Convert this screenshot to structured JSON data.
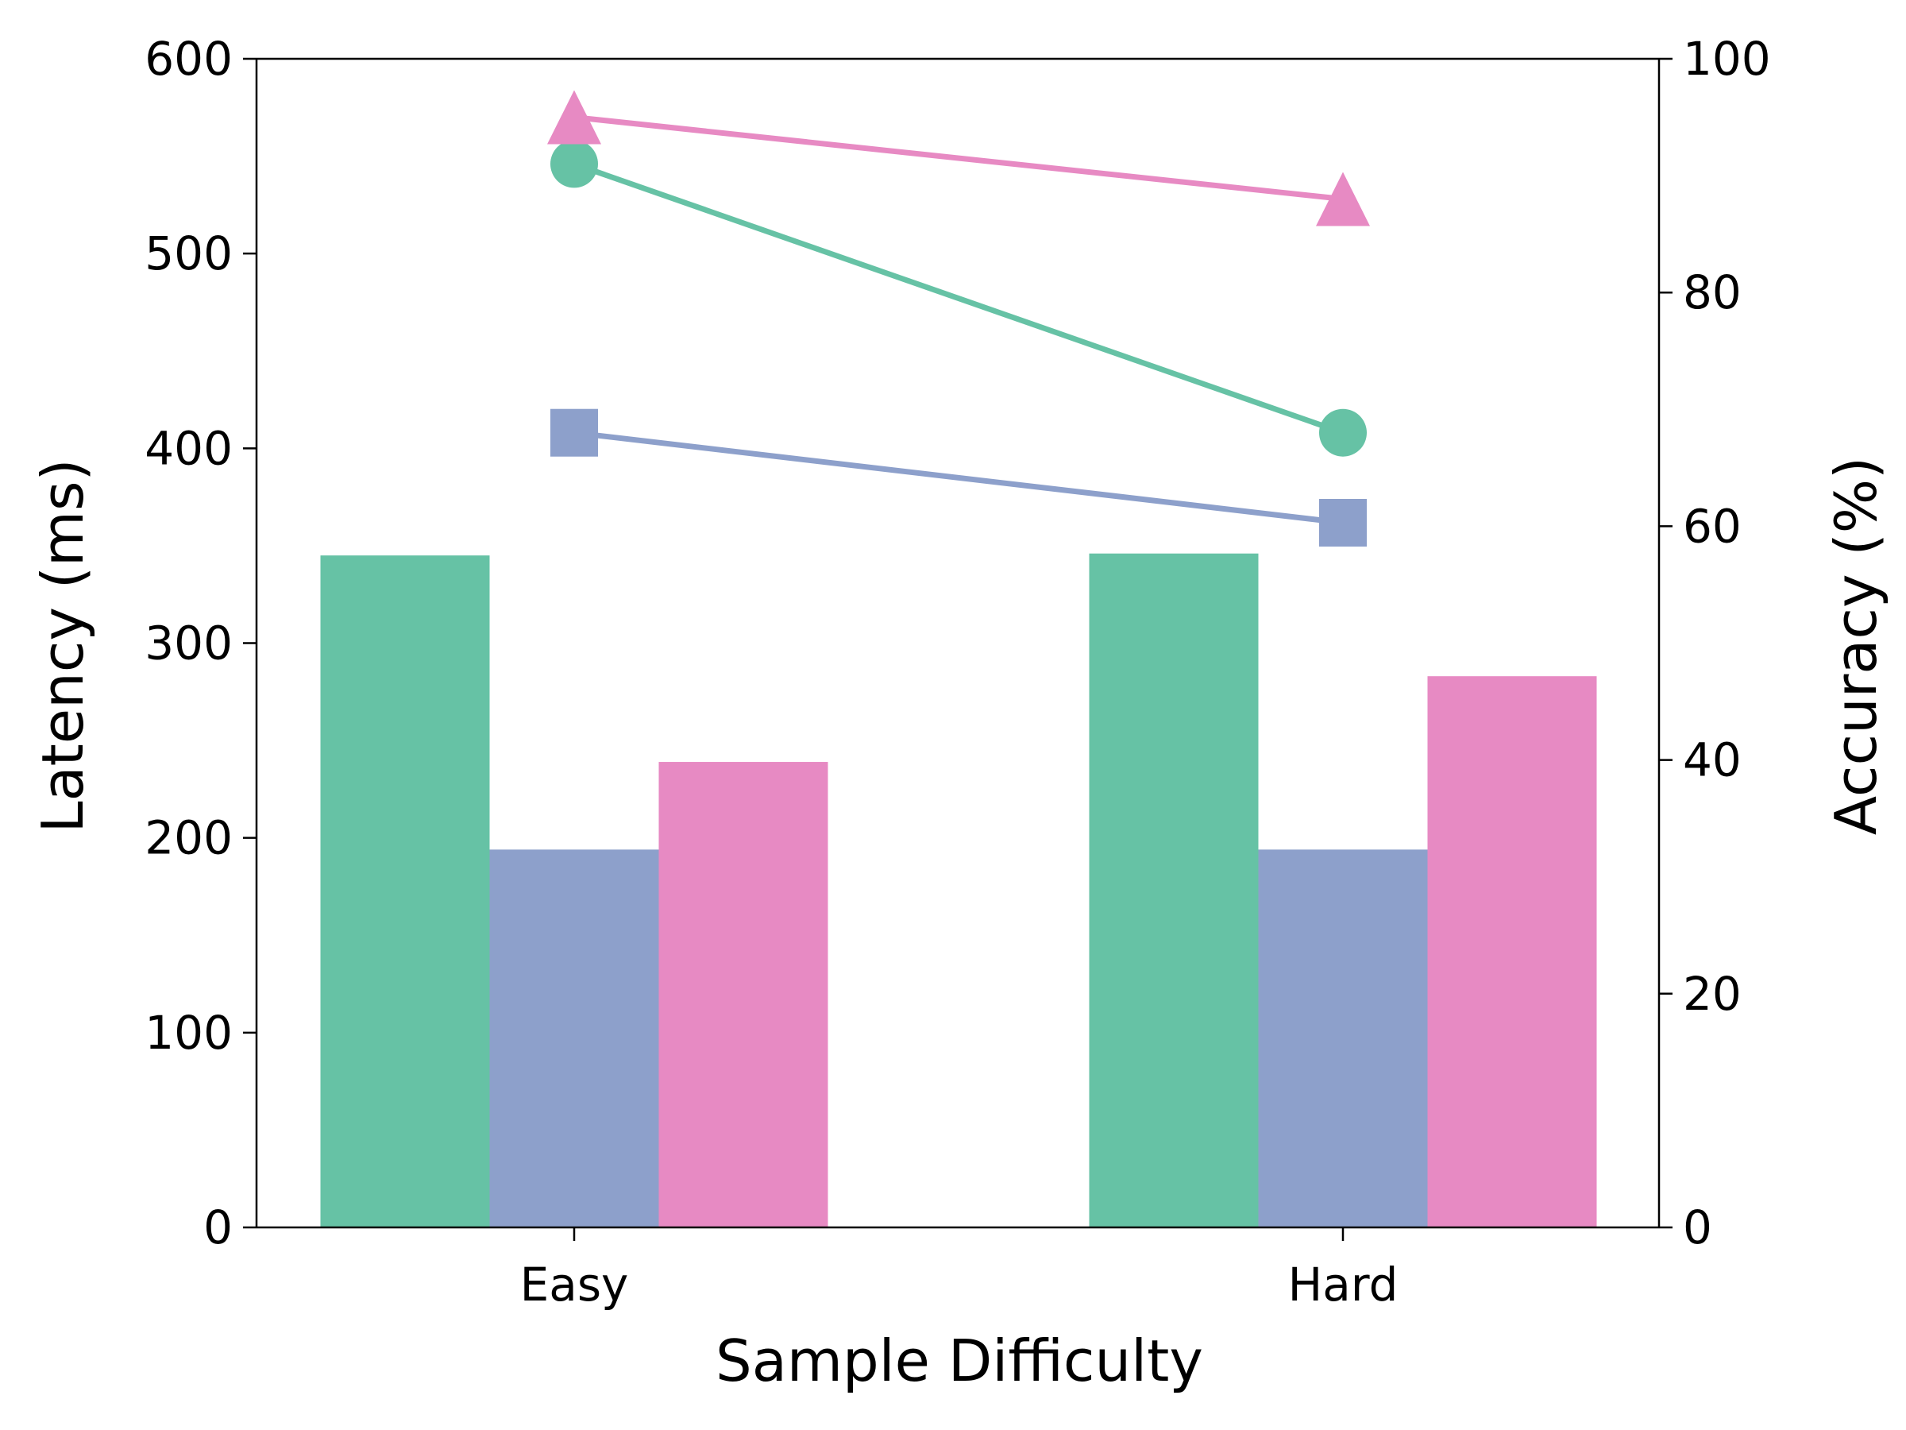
{
  "chart_data": {
    "type": "bar",
    "xlabel": "Sample Difficulty",
    "ylabel": "Latency (ms)",
    "y2label": "Accuracy (%)",
    "categories": [
      "Easy",
      "Hard"
    ],
    "ylim": [
      0,
      600
    ],
    "y2lim": [
      0,
      100
    ],
    "yticks": [
      "0",
      "100",
      "200",
      "300",
      "400",
      "500",
      "600"
    ],
    "y2ticks": [
      "0",
      "20",
      "40",
      "60",
      "80",
      "100"
    ],
    "grid": false,
    "legend": "none",
    "bar_series": [
      {
        "values": [
          345,
          346
        ],
        "color": "#66c2a5"
      },
      {
        "values": [
          194,
          194
        ],
        "color": "#8da0cb"
      },
      {
        "values": [
          239,
          283
        ],
        "color": "#e78ac3"
      }
    ],
    "line_series": [
      {
        "values": [
          91,
          68
        ],
        "color": "#66c2a5",
        "marker": "circle"
      },
      {
        "values": [
          68,
          60.3
        ],
        "color": "#8da0cb",
        "marker": "square"
      },
      {
        "values": [
          95,
          88
        ],
        "color": "#e78ac3",
        "marker": "triangle"
      }
    ]
  }
}
